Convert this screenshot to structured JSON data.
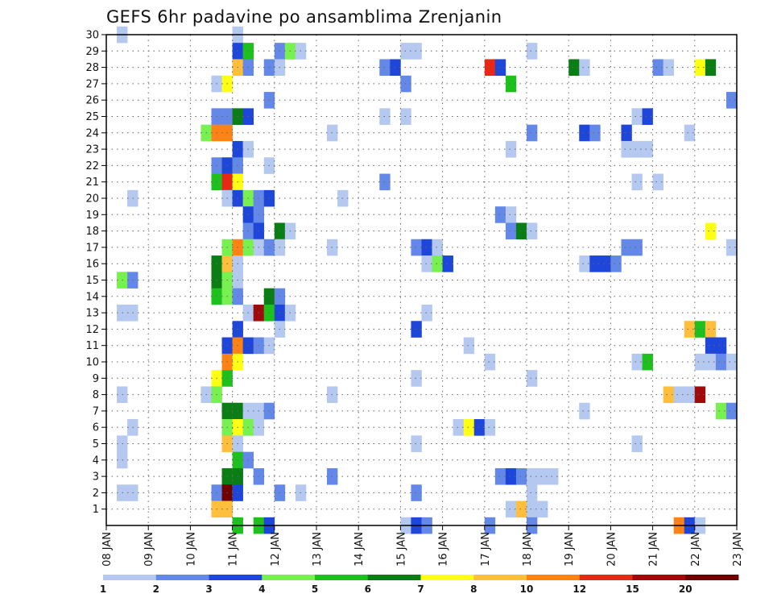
{
  "chart_data": {
    "type": "heatmap",
    "title": "GEFS 6hr padavine po ansamblima Zrenjanin",
    "xlabel": "",
    "ylabel": "",
    "x_ticks": [
      "08 JAN",
      "09 JAN",
      "10 JAN",
      "11 JAN",
      "12 JAN",
      "13 JAN",
      "14 JAN",
      "15 JAN",
      "16 JAN",
      "17 JAN",
      "18 JAN",
      "19 JAN",
      "20 JAN",
      "21 JAN",
      "22 JAN",
      "23 JAN"
    ],
    "y_ticks": [
      "1",
      "2",
      "3",
      "4",
      "5",
      "6",
      "7",
      "8",
      "9",
      "10",
      "11",
      "12",
      "13",
      "14",
      "15",
      "16",
      "17",
      "18",
      "19",
      "20",
      "21",
      "22",
      "23",
      "24",
      "25",
      "26",
      "27",
      "28",
      "29",
      "30"
    ],
    "xlim": [
      0,
      60
    ],
    "ylim": [
      0,
      30
    ],
    "grid": true,
    "colorbar": {
      "labels": [
        "1",
        "2",
        "3",
        "4",
        "5",
        "6",
        "7",
        "8",
        "10",
        "12",
        "15",
        "20"
      ],
      "colors": [
        "#b4c8f0",
        "#6488e8",
        "#1e46d8",
        "#78f050",
        "#1ec01e",
        "#0a7d14",
        "#ffff14",
        "#ffbe3c",
        "#ff8214",
        "#e62814",
        "#a00a0a",
        "#6e0000"
      ]
    },
    "cells": [
      [
        1,
        30,
        1
      ],
      [
        12,
        30,
        1
      ],
      [
        12,
        29,
        3
      ],
      [
        13,
        29,
        5
      ],
      [
        16,
        29,
        2
      ],
      [
        17,
        29,
        4
      ],
      [
        18,
        29,
        1
      ],
      [
        28,
        29,
        1
      ],
      [
        29,
        29,
        1
      ],
      [
        40,
        29,
        1
      ],
      [
        12,
        28,
        8
      ],
      [
        13,
        28,
        2
      ],
      [
        15,
        28,
        2
      ],
      [
        16,
        28,
        1
      ],
      [
        26,
        28,
        2
      ],
      [
        27,
        28,
        3
      ],
      [
        36,
        28,
        10
      ],
      [
        37,
        28,
        3
      ],
      [
        44,
        28,
        6
      ],
      [
        45,
        28,
        1
      ],
      [
        52,
        28,
        2
      ],
      [
        53,
        28,
        1
      ],
      [
        56,
        28,
        7
      ],
      [
        57,
        28,
        6
      ],
      [
        10,
        27,
        1
      ],
      [
        11,
        27,
        7
      ],
      [
        28,
        27,
        2
      ],
      [
        38,
        27,
        5
      ],
      [
        15,
        26,
        2
      ],
      [
        59,
        26,
        2
      ],
      [
        10,
        25,
        2
      ],
      [
        11,
        25,
        2
      ],
      [
        12,
        25,
        6
      ],
      [
        13,
        25,
        3
      ],
      [
        26,
        25,
        1
      ],
      [
        28,
        25,
        1
      ],
      [
        50,
        25,
        1
      ],
      [
        51,
        25,
        3
      ],
      [
        9,
        24,
        4
      ],
      [
        10,
        24,
        9
      ],
      [
        11,
        24,
        9
      ],
      [
        21,
        24,
        1
      ],
      [
        40,
        24,
        2
      ],
      [
        45,
        24,
        3
      ],
      [
        46,
        24,
        2
      ],
      [
        49,
        24,
        3
      ],
      [
        55,
        24,
        1
      ],
      [
        12,
        23,
        3
      ],
      [
        13,
        23,
        1
      ],
      [
        38,
        23,
        1
      ],
      [
        49,
        23,
        1
      ],
      [
        50,
        23,
        1
      ],
      [
        51,
        23,
        1
      ],
      [
        10,
        22,
        2
      ],
      [
        11,
        22,
        3
      ],
      [
        12,
        22,
        2
      ],
      [
        15,
        22,
        1
      ],
      [
        10,
        21,
        5
      ],
      [
        11,
        21,
        10
      ],
      [
        12,
        21,
        7
      ],
      [
        26,
        21,
        2
      ],
      [
        50,
        21,
        1
      ],
      [
        52,
        21,
        1
      ],
      [
        2,
        20,
        1
      ],
      [
        11,
        20,
        1
      ],
      [
        12,
        20,
        3
      ],
      [
        13,
        20,
        4
      ],
      [
        14,
        20,
        2
      ],
      [
        15,
        20,
        3
      ],
      [
        22,
        20,
        1
      ],
      [
        13,
        19,
        3
      ],
      [
        14,
        19,
        2
      ],
      [
        37,
        19,
        2
      ],
      [
        38,
        19,
        1
      ],
      [
        13,
        18,
        2
      ],
      [
        14,
        18,
        3
      ],
      [
        16,
        18,
        6
      ],
      [
        17,
        18,
        1
      ],
      [
        38,
        18,
        2
      ],
      [
        39,
        18,
        6
      ],
      [
        40,
        18,
        1
      ],
      [
        57,
        18,
        7
      ],
      [
        11,
        17,
        4
      ],
      [
        12,
        17,
        9
      ],
      [
        13,
        17,
        4
      ],
      [
        14,
        17,
        1
      ],
      [
        15,
        17,
        2
      ],
      [
        16,
        17,
        1
      ],
      [
        21,
        17,
        1
      ],
      [
        29,
        17,
        2
      ],
      [
        30,
        17,
        3
      ],
      [
        31,
        17,
        1
      ],
      [
        49,
        17,
        2
      ],
      [
        50,
        17,
        2
      ],
      [
        59,
        17,
        1
      ],
      [
        10,
        16,
        6
      ],
      [
        11,
        16,
        8
      ],
      [
        12,
        16,
        1
      ],
      [
        30,
        16,
        1
      ],
      [
        31,
        16,
        4
      ],
      [
        32,
        16,
        3
      ],
      [
        45,
        16,
        1
      ],
      [
        46,
        16,
        3
      ],
      [
        47,
        16,
        3
      ],
      [
        48,
        16,
        2
      ],
      [
        10,
        15,
        6
      ],
      [
        11,
        15,
        4
      ],
      [
        12,
        15,
        1
      ],
      [
        1,
        15,
        4
      ],
      [
        2,
        15,
        2
      ],
      [
        10,
        14,
        5
      ],
      [
        11,
        14,
        4
      ],
      [
        12,
        14,
        2
      ],
      [
        15,
        14,
        6
      ],
      [
        16,
        14,
        2
      ],
      [
        1,
        13,
        1
      ],
      [
        2,
        13,
        1
      ],
      [
        13,
        13,
        1
      ],
      [
        14,
        13,
        11
      ],
      [
        15,
        13,
        5
      ],
      [
        16,
        13,
        3
      ],
      [
        17,
        13,
        1
      ],
      [
        30,
        13,
        1
      ],
      [
        12,
        12,
        3
      ],
      [
        16,
        12,
        1
      ],
      [
        29,
        12,
        3
      ],
      [
        55,
        12,
        8
      ],
      [
        56,
        12,
        5
      ],
      [
        57,
        12,
        8
      ],
      [
        11,
        11,
        3
      ],
      [
        12,
        11,
        9
      ],
      [
        13,
        11,
        3
      ],
      [
        14,
        11,
        2
      ],
      [
        15,
        11,
        1
      ],
      [
        34,
        11,
        1
      ],
      [
        57,
        11,
        3
      ],
      [
        58,
        11,
        3
      ],
      [
        11,
        10,
        9
      ],
      [
        12,
        10,
        7
      ],
      [
        36,
        10,
        1
      ],
      [
        50,
        10,
        1
      ],
      [
        51,
        10,
        5
      ],
      [
        56,
        10,
        1
      ],
      [
        57,
        10,
        1
      ],
      [
        58,
        10,
        2
      ],
      [
        59,
        10,
        1
      ],
      [
        10,
        9,
        7
      ],
      [
        11,
        9,
        5
      ],
      [
        29,
        9,
        1
      ],
      [
        40,
        9,
        1
      ],
      [
        1,
        8,
        1
      ],
      [
        9,
        8,
        1
      ],
      [
        10,
        8,
        4
      ],
      [
        21,
        8,
        1
      ],
      [
        53,
        8,
        8
      ],
      [
        54,
        8,
        1
      ],
      [
        55,
        8,
        1
      ],
      [
        56,
        8,
        11
      ],
      [
        11,
        7,
        6
      ],
      [
        12,
        7,
        6
      ],
      [
        13,
        7,
        1
      ],
      [
        14,
        7,
        1
      ],
      [
        15,
        7,
        2
      ],
      [
        45,
        7,
        1
      ],
      [
        58,
        7,
        4
      ],
      [
        59,
        7,
        2
      ],
      [
        2,
        6,
        1
      ],
      [
        11,
        6,
        4
      ],
      [
        12,
        6,
        7
      ],
      [
        13,
        6,
        4
      ],
      [
        14,
        6,
        1
      ],
      [
        33,
        6,
        1
      ],
      [
        34,
        6,
        7
      ],
      [
        35,
        6,
        3
      ],
      [
        36,
        6,
        1
      ],
      [
        1,
        5,
        1
      ],
      [
        11,
        5,
        8
      ],
      [
        12,
        5,
        1
      ],
      [
        29,
        5,
        1
      ],
      [
        50,
        5,
        1
      ],
      [
        1,
        4,
        1
      ],
      [
        12,
        4,
        5
      ],
      [
        13,
        4,
        2
      ],
      [
        11,
        3,
        6
      ],
      [
        12,
        3,
        6
      ],
      [
        14,
        3,
        2
      ],
      [
        21,
        3,
        2
      ],
      [
        37,
        3,
        2
      ],
      [
        38,
        3,
        3
      ],
      [
        39,
        3,
        2
      ],
      [
        40,
        3,
        1
      ],
      [
        41,
        3,
        1
      ],
      [
        42,
        3,
        1
      ],
      [
        1,
        2,
        1
      ],
      [
        2,
        2,
        1
      ],
      [
        10,
        2,
        2
      ],
      [
        11,
        2,
        12
      ],
      [
        12,
        2,
        3
      ],
      [
        16,
        2,
        2
      ],
      [
        18,
        2,
        1
      ],
      [
        29,
        2,
        2
      ],
      [
        40,
        2,
        1
      ],
      [
        10,
        1,
        8
      ],
      [
        11,
        1,
        8
      ],
      [
        38,
        1,
        1
      ],
      [
        39,
        1,
        8
      ],
      [
        40,
        1,
        1
      ],
      [
        41,
        1,
        1
      ],
      [
        12,
        0,
        5
      ],
      [
        14,
        0,
        5
      ],
      [
        15,
        0,
        3
      ],
      [
        28,
        0,
        1
      ],
      [
        29,
        0,
        3
      ],
      [
        30,
        0,
        2
      ],
      [
        36,
        0,
        2
      ],
      [
        40,
        0,
        2
      ],
      [
        54,
        0,
        9
      ],
      [
        55,
        0,
        3
      ],
      [
        56,
        0,
        1
      ]
    ]
  }
}
